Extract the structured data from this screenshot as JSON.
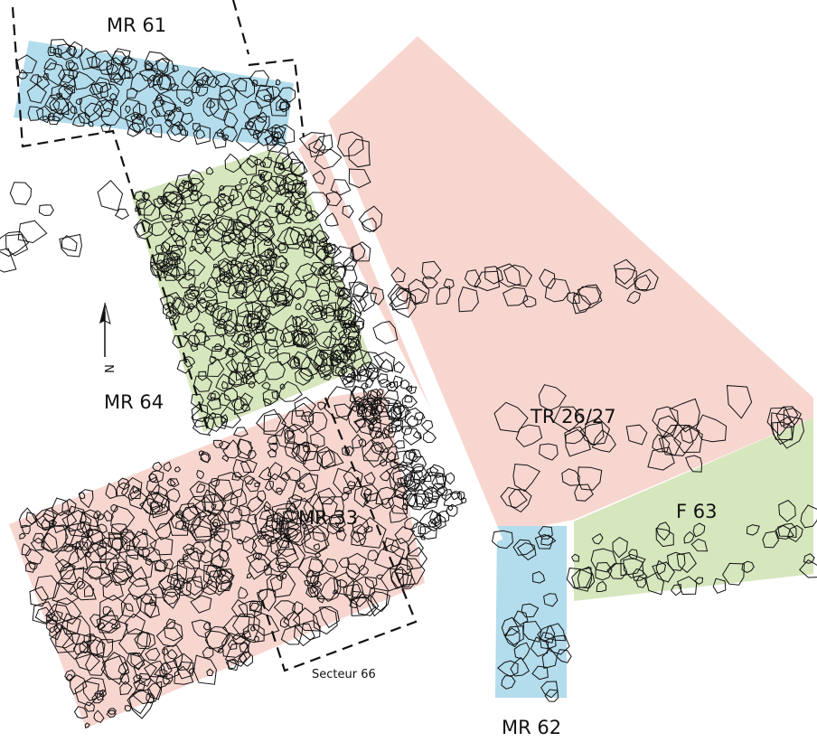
{
  "zones": [
    {
      "label": "MR 61"
    },
    {
      "label": "MR 64"
    },
    {
      "label": "MR 33"
    },
    {
      "label": "TR 26/27"
    },
    {
      "label": "F 63"
    },
    {
      "label": "MR 62"
    }
  ],
  "sector": {
    "label": "Secteur 66"
  },
  "north": {
    "label": "N"
  }
}
